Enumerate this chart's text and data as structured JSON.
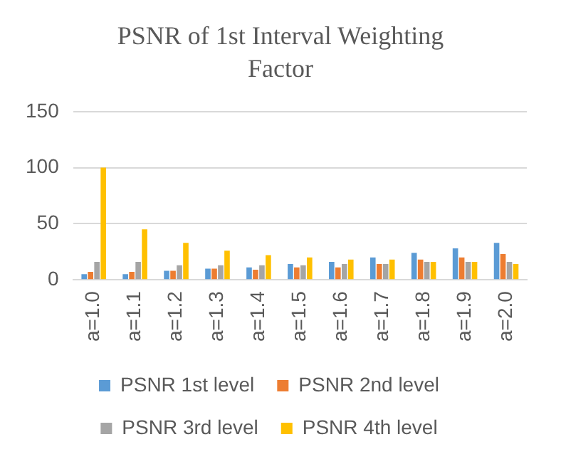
{
  "chart_data": {
    "type": "bar",
    "title": "PSNR  of 1st Interval Weighting Factor",
    "categories": [
      "a=1.0",
      "a=1.1",
      "a=1.2",
      "a=1.3",
      "a=1.4",
      "a=1.5",
      "a=1.6",
      "a=1.7",
      "a=1.8",
      "a=1.9",
      "a=2.0"
    ],
    "series": [
      {
        "name": "PSNR 1st level",
        "color": "#5b9bd5",
        "values": [
          5,
          5,
          8,
          10,
          11,
          14,
          16,
          20,
          24,
          28,
          33
        ]
      },
      {
        "name": "PSNR 2nd level",
        "color": "#ed7d31",
        "values": [
          7,
          7,
          8,
          10,
          9,
          11,
          11,
          14,
          18,
          20,
          23
        ]
      },
      {
        "name": "PSNR 3rd level",
        "color": "#a5a5a5",
        "values": [
          16,
          16,
          13,
          13,
          13,
          13,
          14,
          14,
          16,
          16,
          16
        ]
      },
      {
        "name": "PSNR 4th level",
        "color": "#ffc000",
        "values": [
          100,
          45,
          33,
          26,
          22,
          20,
          18,
          18,
          16,
          16,
          14
        ]
      }
    ],
    "ylim": [
      0,
      150
    ],
    "yticks": [
      0,
      50,
      100,
      150
    ],
    "grid": "y",
    "legend": "bottom"
  }
}
